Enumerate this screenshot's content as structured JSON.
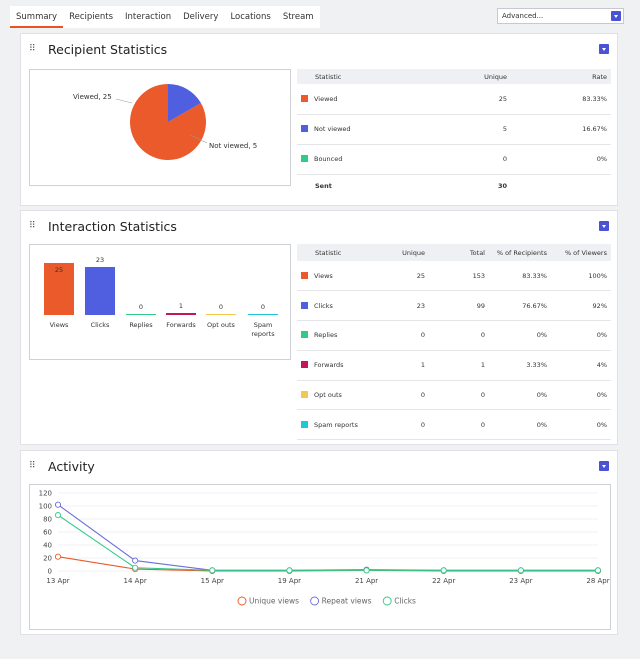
{
  "tabs": [
    "Summary",
    "Recipients",
    "Interaction",
    "Delivery",
    "Locations",
    "Stream"
  ],
  "advanced_select": "Advanced...",
  "recipient_panel": {
    "title": "Recipient Statistics",
    "pie_labels": [
      "Viewed, 25",
      "Not viewed, 5"
    ],
    "table": {
      "headers": [
        "Statistic",
        "Unique",
        "Rate"
      ],
      "rows": [
        {
          "label": "Viewed",
          "color": "#ea5a2a",
          "unique": "25",
          "rate": "83.33%"
        },
        {
          "label": "Not viewed",
          "color": "#4f5fe0",
          "unique": "5",
          "rate": "16.67%"
        },
        {
          "label": "Bounced",
          "color": "#2ecc88",
          "unique": "0",
          "rate": "0%"
        }
      ],
      "total": {
        "label": "Sent",
        "unique": "30"
      }
    }
  },
  "interaction_panel": {
    "title": "Interaction Statistics",
    "bars": [
      {
        "label": "Views",
        "value": "25",
        "color": "#ea5a2a"
      },
      {
        "label": "Clicks",
        "value": "23",
        "color": "#4f5fe0"
      },
      {
        "label": "Replies",
        "value": "0",
        "color": "#2ecc88"
      },
      {
        "label": "Forwards",
        "value": "1",
        "color": "#c2185b"
      },
      {
        "label": "Opt outs",
        "value": "0",
        "color": "#f2c94c"
      },
      {
        "label": "Spam reports",
        "value": "0",
        "color": "#1fc8d8"
      }
    ],
    "table": {
      "headers": [
        "Statistic",
        "Unique",
        "Total",
        "% of Recipients",
        "% of Viewers"
      ],
      "rows": [
        {
          "label": "Views",
          "color": "#ea5a2a",
          "unique": "25",
          "total": "153",
          "pct_rec": "83.33%",
          "pct_view": "100%"
        },
        {
          "label": "Clicks",
          "color": "#4f5fe0",
          "unique": "23",
          "total": "99",
          "pct_rec": "76.67%",
          "pct_view": "92%"
        },
        {
          "label": "Replies",
          "color": "#2ecc88",
          "unique": "0",
          "total": "0",
          "pct_rec": "0%",
          "pct_view": "0%"
        },
        {
          "label": "Forwards",
          "color": "#c2185b",
          "unique": "1",
          "total": "1",
          "pct_rec": "3.33%",
          "pct_view": "4%"
        },
        {
          "label": "Opt outs",
          "color": "#f2c94c",
          "unique": "0",
          "total": "0",
          "pct_rec": "0%",
          "pct_view": "0%"
        },
        {
          "label": "Spam reports",
          "color": "#1fc8d8",
          "unique": "0",
          "total": "0",
          "pct_rec": "0%",
          "pct_view": "0%"
        }
      ]
    }
  },
  "activity_panel": {
    "title": "Activity"
  },
  "chart_data": [
    {
      "type": "pie",
      "categories": [
        "Viewed",
        "Not viewed"
      ],
      "values": [
        25,
        5
      ],
      "colors": [
        "#ea5a2a",
        "#4f5fe0"
      ]
    },
    {
      "type": "bar",
      "categories": [
        "Views",
        "Clicks",
        "Replies",
        "Forwards",
        "Opt outs",
        "Spam reports"
      ],
      "values": [
        25,
        23,
        0,
        1,
        0,
        0
      ]
    },
    {
      "type": "line",
      "x": [
        "13 Apr",
        "14 Apr",
        "15 Apr",
        "19 Apr",
        "21 Apr",
        "22 Apr",
        "23 Apr",
        "28 Apr"
      ],
      "yticks": [
        0,
        20,
        40,
        60,
        80,
        100,
        120
      ],
      "ylim": [
        0,
        120
      ],
      "series": [
        {
          "name": "Unique views",
          "color": "#ea5a2a",
          "values": [
            22,
            3,
            0,
            0,
            1,
            0,
            0,
            0
          ]
        },
        {
          "name": "Repeat views",
          "color": "#6b70d8",
          "values": [
            102,
            16,
            1,
            1,
            2,
            1,
            1,
            1
          ]
        },
        {
          "name": "Clicks",
          "color": "#2ecc88",
          "values": [
            86,
            5,
            1,
            1,
            1,
            1,
            1,
            1
          ]
        }
      ]
    }
  ]
}
